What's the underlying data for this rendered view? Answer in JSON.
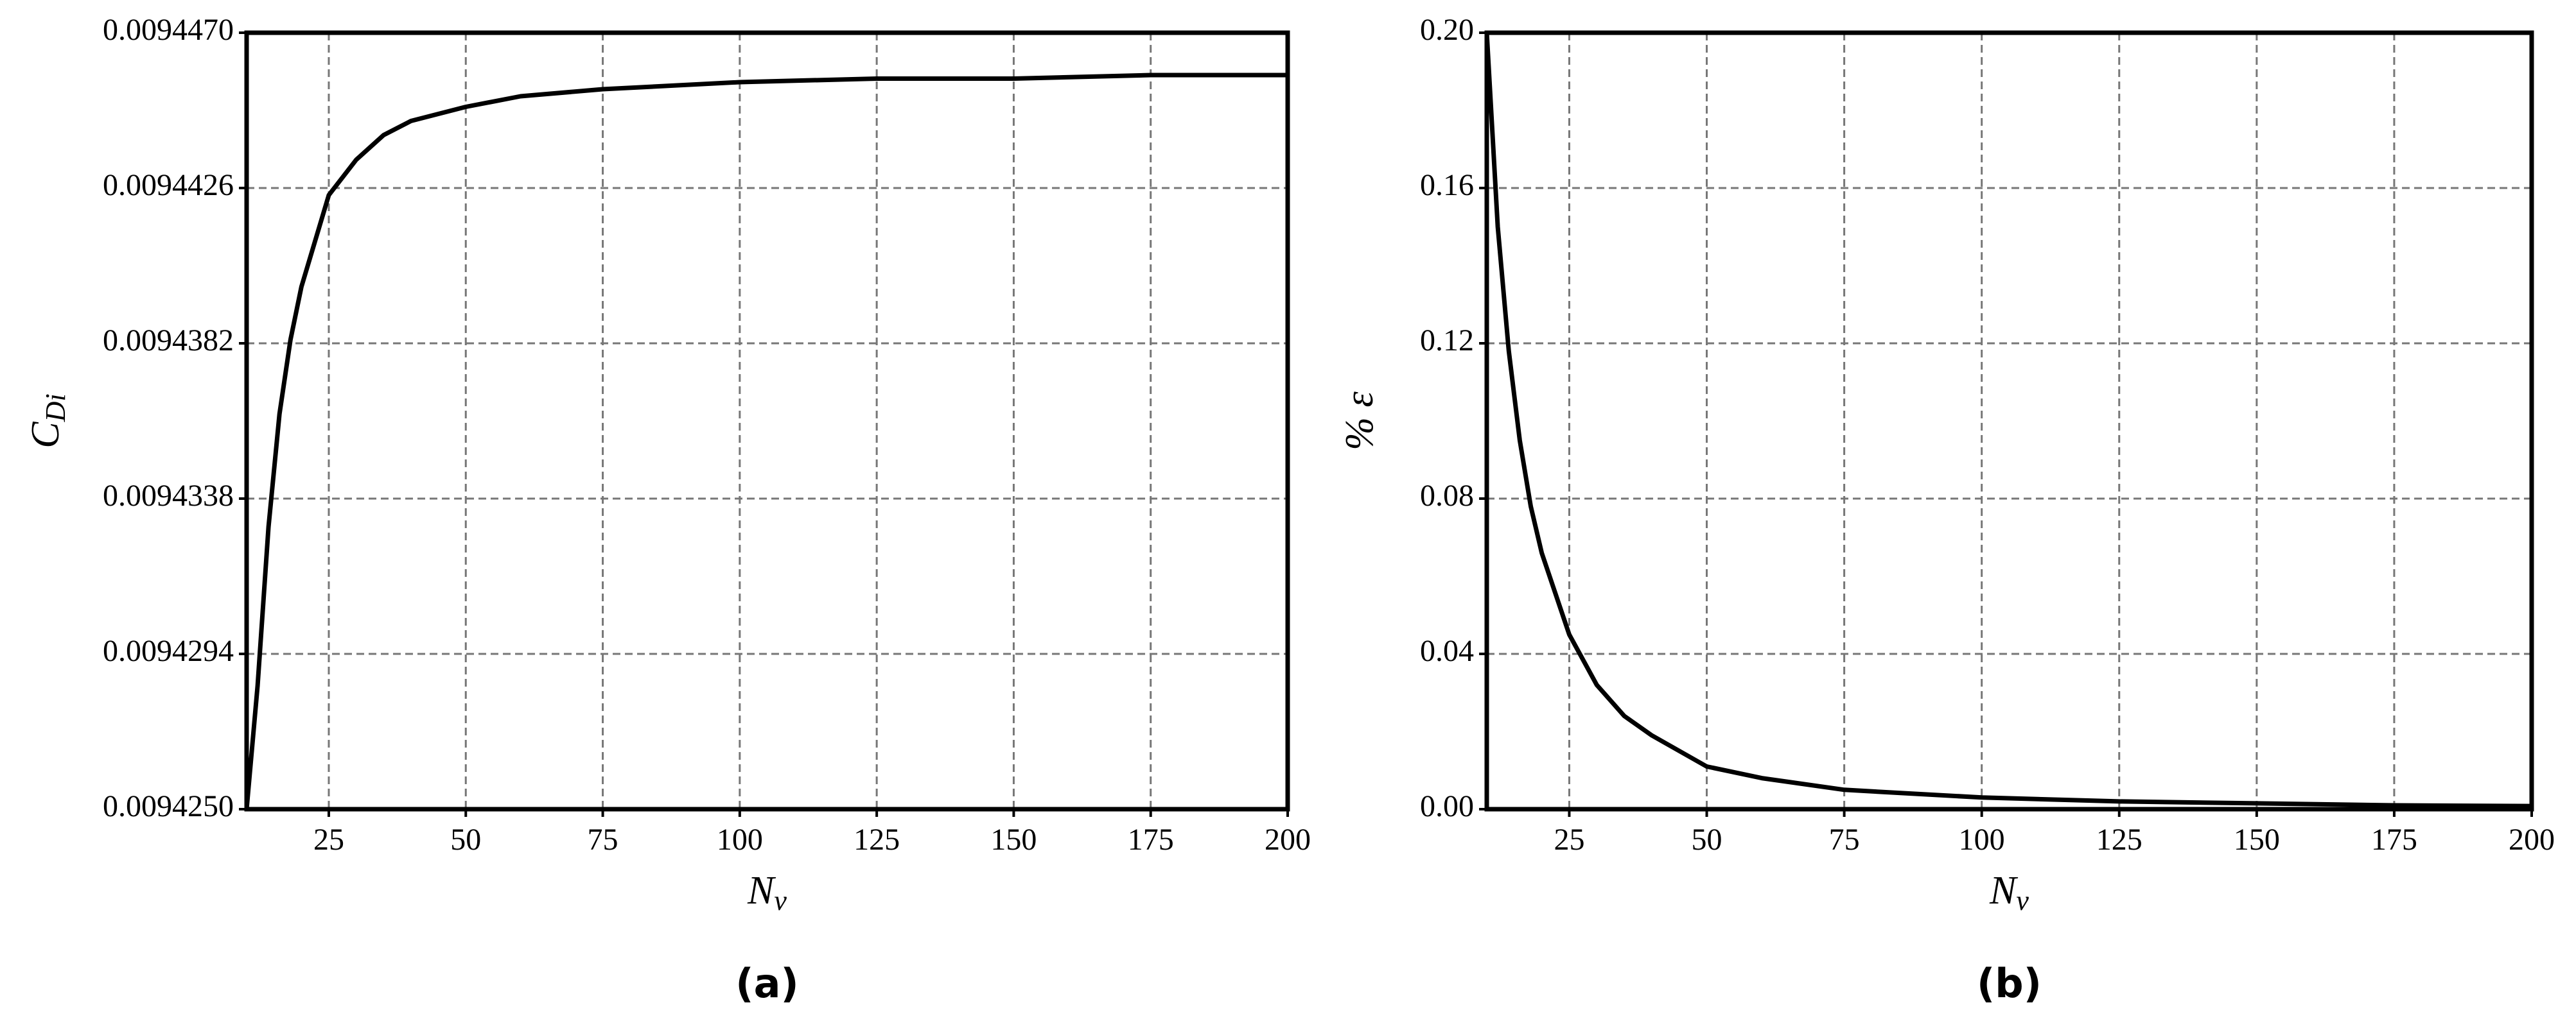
{
  "chart_data": [
    {
      "type": "line",
      "caption": "(a)",
      "xlabel": {
        "text": "N",
        "subscript": "ν"
      },
      "ylabel": {
        "text": "C",
        "subscript": "Di"
      },
      "x": [
        10,
        12,
        14,
        16,
        18,
        20,
        25,
        30,
        35,
        40,
        50,
        60,
        75,
        100,
        125,
        150,
        175,
        200
      ],
      "values": [
        0.009425,
        0.0094285,
        0.009433,
        0.0094362,
        0.0094383,
        0.0094398,
        0.0094424,
        0.0094434,
        0.0094441,
        0.0094445,
        0.0094449,
        0.0094452,
        0.0094454,
        0.0094456,
        0.0094457,
        0.0094457,
        0.0094458,
        0.0094458
      ],
      "color": "#000000",
      "xlim": [
        10,
        200
      ],
      "xticks": [
        25,
        50,
        75,
        100,
        125,
        150,
        175,
        200
      ],
      "ylim": [
        0.009425,
        0.009447
      ],
      "yticks": [
        {
          "value": 0.009425,
          "label": "0.0094250"
        },
        {
          "value": 0.0094294,
          "label": "0.0094294"
        },
        {
          "value": 0.0094338,
          "label": "0.0094338"
        },
        {
          "value": 0.0094382,
          "label": "0.0094382"
        },
        {
          "value": 0.0094426,
          "label": "0.0094426"
        },
        {
          "value": 0.009447,
          "label": "0.0094470"
        }
      ],
      "grid": true
    },
    {
      "type": "line",
      "caption": "(b)",
      "xlabel": {
        "text": "N",
        "subscript": "ν"
      },
      "ylabel": {
        "text": "% ε"
      },
      "x": [
        10,
        12,
        14,
        16,
        18,
        20,
        25,
        30,
        35,
        40,
        50,
        60,
        75,
        100,
        125,
        150,
        175,
        200
      ],
      "values": [
        0.2,
        0.15,
        0.118,
        0.095,
        0.078,
        0.066,
        0.045,
        0.032,
        0.024,
        0.019,
        0.011,
        0.008,
        0.005,
        0.003,
        0.002,
        0.0015,
        0.001,
        0.0008
      ],
      "color": "#000000",
      "xlim": [
        10,
        200
      ],
      "xticks": [
        25,
        50,
        75,
        100,
        125,
        150,
        175,
        200
      ],
      "ylim": [
        0,
        0.2
      ],
      "yticks": [
        {
          "value": 0,
          "label": "0.00"
        },
        {
          "value": 0.04,
          "label": "0.04"
        },
        {
          "value": 0.08,
          "label": "0.08"
        },
        {
          "value": 0.12,
          "label": "0.12"
        },
        {
          "value": 0.16,
          "label": "0.16"
        },
        {
          "value": 0.2,
          "label": "0.20"
        }
      ],
      "grid": true
    }
  ]
}
